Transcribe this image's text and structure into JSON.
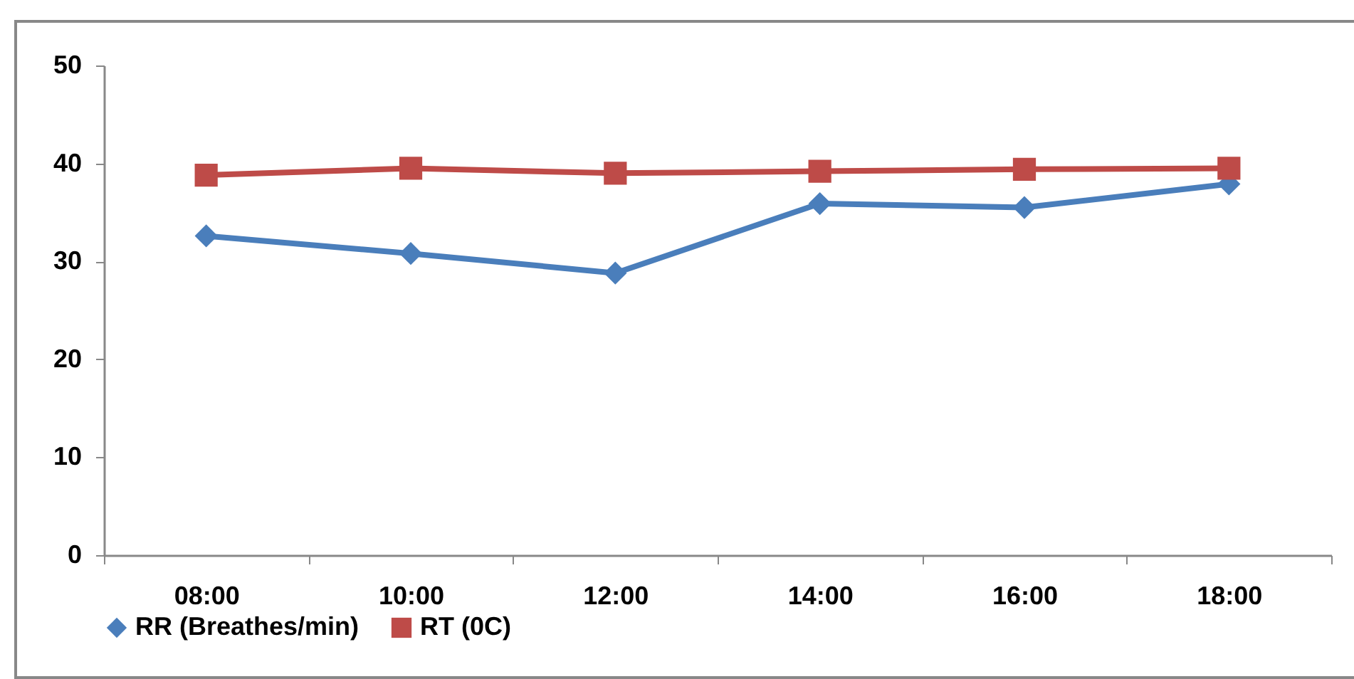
{
  "chart_data": {
    "type": "line",
    "categories": [
      "08:00",
      "10:00",
      "12:00",
      "14:00",
      "16:00",
      "18:00"
    ],
    "series": [
      {
        "name": "RR (Breathes/min)",
        "color": "#4a7ebb",
        "marker": "diamond",
        "values": [
          32.6,
          30.8,
          28.8,
          35.9,
          35.5,
          37.9
        ]
      },
      {
        "name": "RT (0C)",
        "color": "#be4b48",
        "marker": "square",
        "values": [
          38.8,
          39.5,
          39.0,
          39.2,
          39.4,
          39.5
        ]
      }
    ],
    "ylim": [
      0,
      50
    ],
    "yticks": [
      0,
      10,
      20,
      30,
      40,
      50
    ],
    "grid": false,
    "legend": "bottom",
    "line_style": "solid"
  }
}
